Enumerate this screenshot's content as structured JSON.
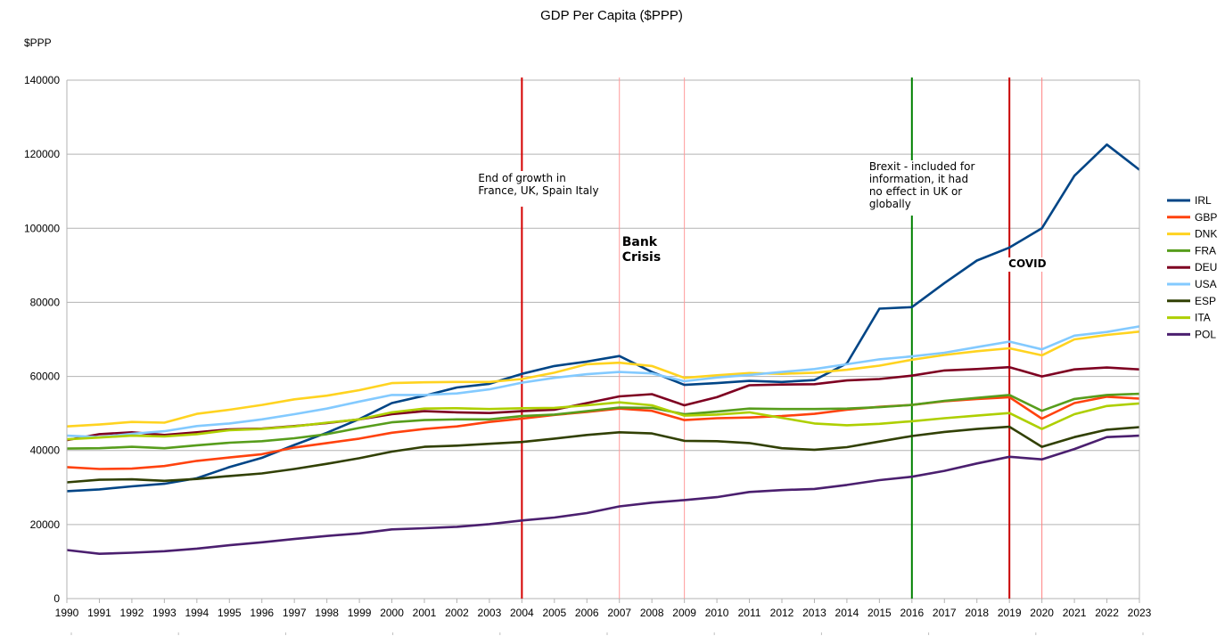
{
  "chart_data": {
    "type": "line",
    "title": "GDP Per Capita ($PPP)",
    "ylabel": "$PPP",
    "xlabel": "",
    "ylim": [
      0,
      140000
    ],
    "yticks": [
      0,
      20000,
      40000,
      60000,
      80000,
      100000,
      120000,
      140000
    ],
    "grid": "horizontal",
    "legend_position": "right",
    "x": [
      "1990",
      "1991",
      "1992",
      "1993",
      "1994",
      "1995",
      "1996",
      "1997",
      "1998",
      "1999",
      "2000",
      "2001",
      "2002",
      "2003",
      "2004",
      "2005",
      "2006",
      "2007",
      "2008",
      "2009",
      "2010",
      "2011",
      "2012",
      "2013",
      "2014",
      "2015",
      "2016",
      "2017",
      "2018",
      "2019",
      "2020",
      "2021",
      "2022",
      "2023"
    ],
    "series": [
      {
        "name": "IRL",
        "color": "#004586",
        "values": [
          29000,
          29500,
          30300,
          31000,
          32500,
          35500,
          38000,
          41500,
          44800,
          48500,
          52800,
          54800,
          57000,
          58000,
          60700,
          62800,
          64000,
          65500,
          61200,
          57700,
          58200,
          58800,
          58500,
          59000,
          63500,
          78300,
          78700,
          85200,
          91300,
          94800,
          100000,
          114200,
          122600,
          115800
        ]
      },
      {
        "name": "GBP",
        "color": "#ff420e",
        "values": [
          35500,
          35000,
          35100,
          35800,
          37200,
          38100,
          39000,
          40800,
          42000,
          43200,
          44800,
          45800,
          46500,
          47700,
          48600,
          49600,
          50400,
          51300,
          50700,
          48200,
          48700,
          48900,
          49300,
          49900,
          51000,
          51800,
          52300,
          53300,
          53900,
          54400,
          48600,
          52800,
          54500,
          54000
        ]
      },
      {
        "name": "DNK",
        "color": "#ffd320",
        "values": [
          46500,
          47000,
          47700,
          47500,
          49900,
          51000,
          52300,
          53800,
          54800,
          56300,
          58200,
          58400,
          58500,
          58500,
          59300,
          61000,
          63300,
          63700,
          62800,
          59600,
          60300,
          60900,
          60700,
          61000,
          61800,
          62900,
          64500,
          65800,
          66800,
          67600,
          65700,
          70000,
          71200,
          72100
        ]
      },
      {
        "name": "FRA",
        "color": "#579d1c",
        "values": [
          40500,
          40600,
          41000,
          40600,
          41400,
          42100,
          42500,
          43300,
          44400,
          46100,
          47600,
          48200,
          48400,
          48400,
          49300,
          49700,
          50600,
          51600,
          51500,
          49800,
          50500,
          51300,
          51200,
          51200,
          51300,
          51700,
          52300,
          53400,
          54200,
          55000,
          50700,
          53900,
          55000,
          55300
        ]
      },
      {
        "name": "DEU",
        "color": "#7e0021",
        "values": [
          42800,
          44400,
          44900,
          44200,
          44900,
          45700,
          45900,
          46600,
          47400,
          48400,
          49800,
          50600,
          50300,
          50100,
          50600,
          51000,
          52800,
          54600,
          55200,
          52200,
          54400,
          57600,
          57800,
          57900,
          58900,
          59300,
          60200,
          61600,
          62000,
          62500,
          60000,
          61900,
          62400,
          61900
        ]
      },
      {
        "name": "USA",
        "color": "#83caff",
        "values": [
          44000,
          43600,
          44500,
          45200,
          46600,
          47300,
          48400,
          49800,
          51300,
          53200,
          55000,
          55000,
          55400,
          56500,
          58300,
          59600,
          60600,
          61200,
          60800,
          58700,
          59700,
          60400,
          61200,
          62000,
          63300,
          64600,
          65400,
          66400,
          67900,
          69400,
          67300,
          71000,
          72000,
          73500
        ]
      },
      {
        "name": "ESP",
        "color": "#314004",
        "values": [
          31400,
          32100,
          32200,
          31800,
          32300,
          33100,
          33800,
          35000,
          36400,
          37900,
          39700,
          41000,
          41300,
          41800,
          42300,
          43200,
          44200,
          44900,
          44600,
          42600,
          42500,
          42000,
          40600,
          40200,
          40900,
          42400,
          43900,
          45000,
          45800,
          46400,
          41000,
          43600,
          45600,
          46300
        ]
      },
      {
        "name": "ITA",
        "color": "#aecf00",
        "values": [
          43000,
          43500,
          44000,
          43800,
          44400,
          45500,
          45800,
          46500,
          47500,
          48400,
          50300,
          51300,
          51400,
          51200,
          51400,
          51500,
          52200,
          53000,
          52200,
          49400,
          49700,
          50300,
          48800,
          47300,
          46800,
          47200,
          47900,
          48700,
          49400,
          50100,
          45800,
          49800,
          52000,
          52700
        ]
      },
      {
        "name": "POL",
        "color": "#4b1f6f",
        "values": [
          13100,
          12100,
          12400,
          12800,
          13500,
          14400,
          15200,
          16100,
          16900,
          17600,
          18700,
          19000,
          19400,
          20100,
          21100,
          21900,
          23100,
          24900,
          25900,
          26600,
          27400,
          28800,
          29300,
          29600,
          30700,
          32000,
          32900,
          34500,
          36500,
          38300,
          37600,
          40400,
          43600,
          44000
        ]
      }
    ],
    "markers": [
      {
        "year": "2004",
        "color": "#d40000"
      },
      {
        "year": "2007",
        "color": "#ff9a9a"
      },
      {
        "year": "2009",
        "color": "#ff9a9a"
      },
      {
        "year": "2016",
        "color": "#008000"
      },
      {
        "year": "2019",
        "color": "#c80000"
      },
      {
        "year": "2020",
        "color": "#ff8080"
      }
    ],
    "annotations": [
      {
        "year": "2004",
        "style": "normal",
        "lines": [
          "End of growth in",
          "France, UK, Spain Italy"
        ]
      },
      {
        "year": "2007",
        "style": "bold",
        "lines": [
          "Bank",
          "Crisis"
        ]
      },
      {
        "year": "2016",
        "style": "normal",
        "lines": [
          "Brexit - included for",
          "information, it had",
          "no effect in UK or",
          "globally"
        ]
      },
      {
        "year": "2019",
        "style": "bold-small",
        "lines": [
          "COVID"
        ]
      }
    ]
  }
}
